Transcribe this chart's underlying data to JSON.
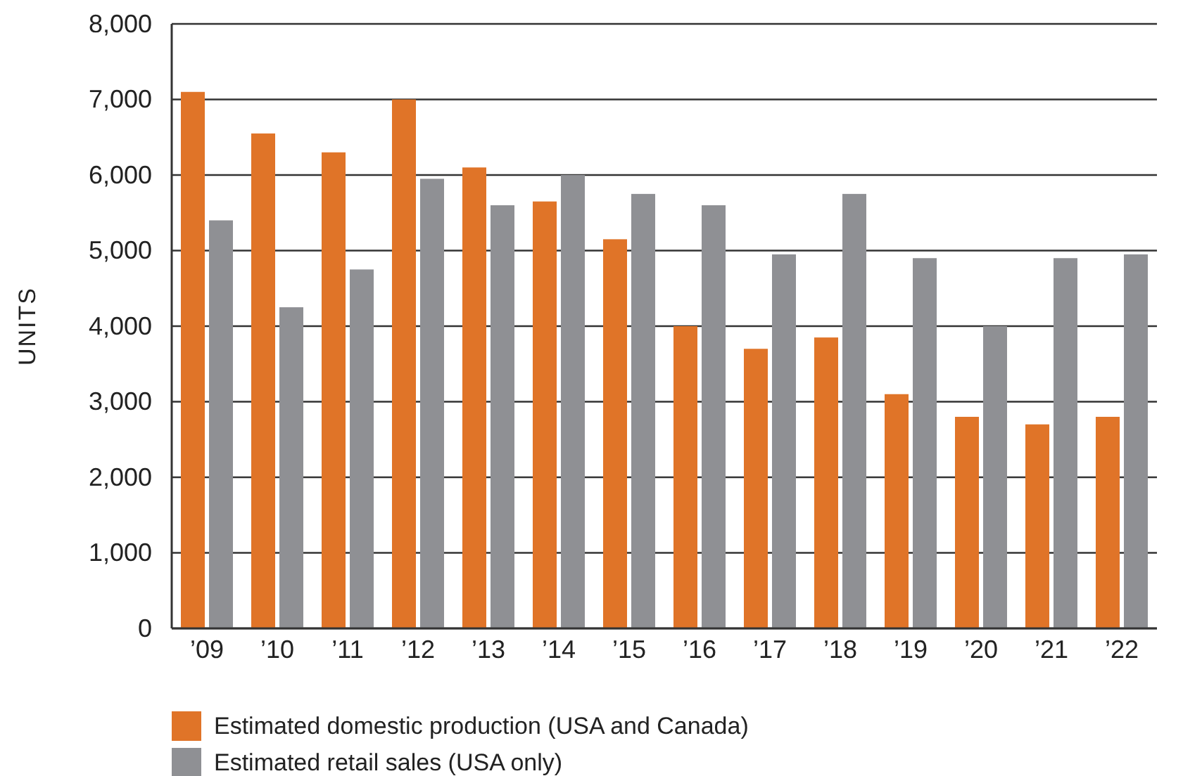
{
  "chart_data": {
    "type": "bar",
    "ylabel": "UNITS",
    "categories": [
      "’09",
      "’10",
      "’11",
      "’12",
      "’13",
      "’14",
      "’15",
      "’16",
      "’17",
      "’18",
      "’19",
      "’20",
      "’21",
      "’22"
    ],
    "series": [
      {
        "name": "Estimated domestic production (USA and Canada)",
        "color": "#e07428",
        "values": [
          7100,
          6550,
          6300,
          7000,
          6100,
          5650,
          5150,
          4000,
          3700,
          3850,
          3100,
          2800,
          2700,
          2800
        ]
      },
      {
        "name": "Estimated retail sales (USA only)",
        "color": "#8f9094",
        "values": [
          5400,
          4250,
          4750,
          5950,
          5600,
          6000,
          5750,
          5600,
          4950,
          5750,
          4900,
          4000,
          4900,
          4950
        ]
      }
    ],
    "ylim": [
      0,
      8000
    ],
    "yticks": [
      {
        "value": 0,
        "label": "0"
      },
      {
        "value": 1000,
        "label": "1,000"
      },
      {
        "value": 2000,
        "label": "2,000"
      },
      {
        "value": 3000,
        "label": "3,000"
      },
      {
        "value": 4000,
        "label": "4,000"
      },
      {
        "value": 5000,
        "label": "5,000"
      },
      {
        "value": 6000,
        "label": "6,000"
      },
      {
        "value": 7000,
        "label": "7,000"
      },
      {
        "value": 8000,
        "label": "8,000"
      }
    ],
    "grid": "y",
    "legend": "bottom"
  }
}
